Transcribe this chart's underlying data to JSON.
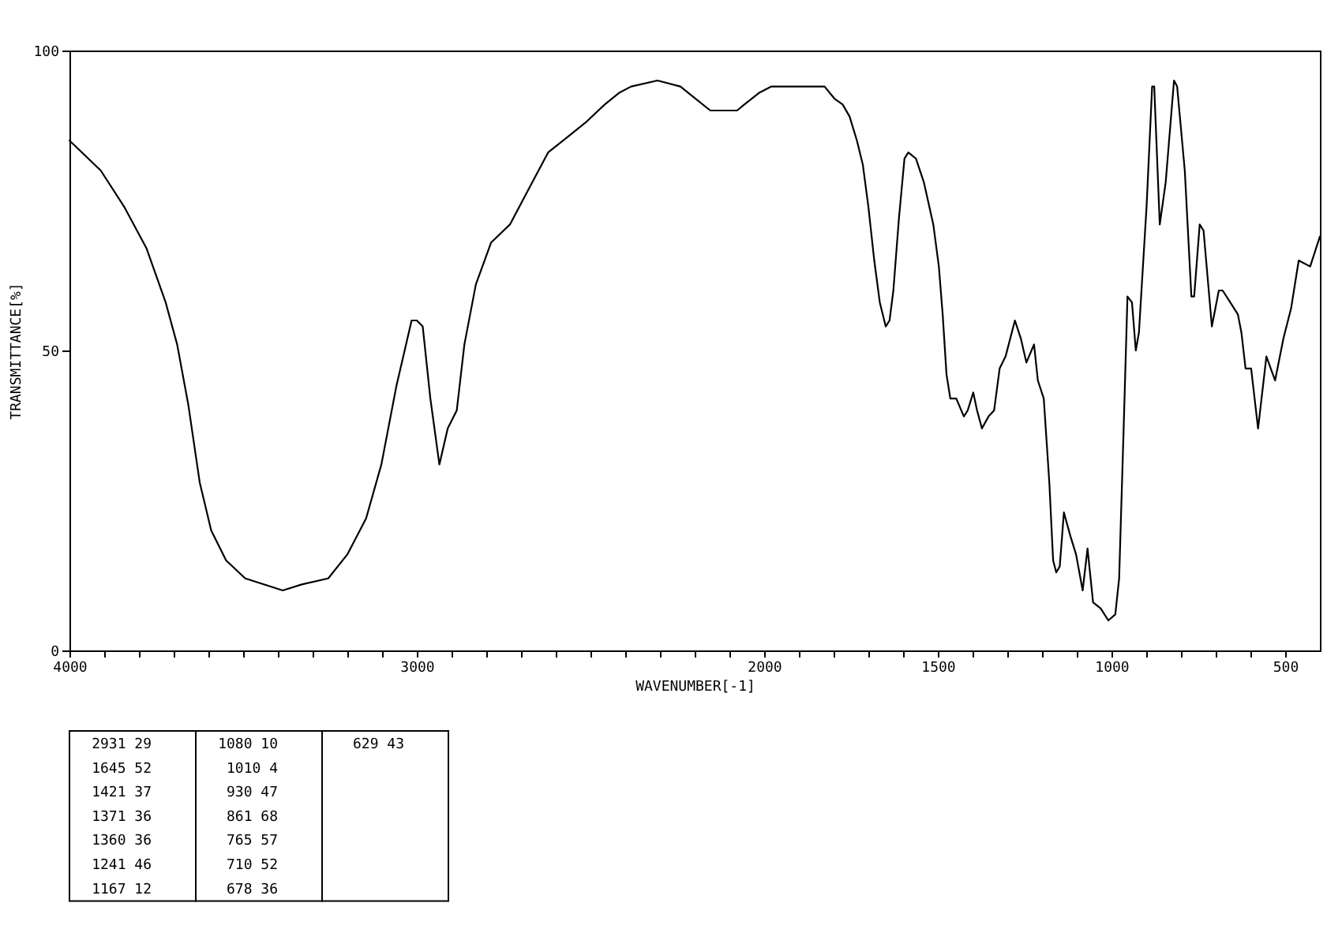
{
  "chart_data": [
    {
      "type": "line",
      "xlabel": "WAVENUMBER[-1]",
      "ylabel": "TRANSMITTANCE[%]",
      "xlim": [
        4000,
        400
      ],
      "ylim": [
        0,
        100
      ],
      "xticks": [
        4000,
        {
          "value": 3900,
          "label": null
        },
        {
          "value": 3800,
          "label": null
        },
        {
          "value": 3700,
          "label": null
        },
        {
          "value": 3600,
          "label": null
        },
        {
          "value": 3500,
          "label": null
        },
        {
          "value": 3400,
          "label": null
        },
        {
          "value": 3300,
          "label": null
        },
        {
          "value": 3200,
          "label": null
        },
        {
          "value": 3100,
          "label": null
        },
        3000,
        {
          "value": 2900,
          "label": null
        },
        {
          "value": 2800,
          "label": null
        },
        {
          "value": 2700,
          "label": null
        },
        {
          "value": 2600,
          "label": null
        },
        {
          "value": 2500,
          "label": null
        },
        {
          "value": 2400,
          "label": null
        },
        {
          "value": 2300,
          "label": null
        },
        {
          "value": 2200,
          "label": null
        },
        {
          "value": 2100,
          "label": null
        },
        2000,
        {
          "value": 1900,
          "label": null
        },
        {
          "value": 1800,
          "label": null
        },
        {
          "value": 1700,
          "label": null
        },
        {
          "value": 1600,
          "label": null
        },
        1500,
        {
          "value": 1400,
          "label": null
        },
        {
          "value": 1300,
          "label": null
        },
        {
          "value": 1200,
          "label": null
        },
        {
          "value": 1100,
          "label": null
        },
        1000,
        {
          "value": 900,
          "label": null
        },
        {
          "value": 800,
          "label": null
        },
        {
          "value": 700,
          "label": null
        },
        {
          "value": 600,
          "label": null
        },
        500
      ],
      "yticks": [
        0,
        50,
        100
      ],
      "grid": false,
      "line_style": "solid",
      "x": [
        4000,
        3910,
        3843,
        3778,
        3723,
        3690,
        3658,
        3625,
        3592,
        3549,
        3494,
        3386,
        3331,
        3255,
        3200,
        3146,
        3102,
        3059,
        3015,
        3000,
        2983,
        2961,
        2935,
        2911,
        2885,
        2863,
        2830,
        2786,
        2732,
        2677,
        2622,
        2557,
        2514,
        2459,
        2416,
        2383,
        2307,
        2241,
        2198,
        2155,
        2078,
        2057,
        2013,
        1979,
        1935,
        1848,
        1826,
        1798,
        1774,
        1754,
        1733,
        1716,
        1700,
        1683,
        1667,
        1650,
        1639,
        1628,
        1612,
        1596,
        1585,
        1563,
        1540,
        1513,
        1497,
        1486,
        1475,
        1464,
        1447,
        1425,
        1414,
        1398,
        1387,
        1373,
        1354,
        1338,
        1322,
        1305,
        1278,
        1261,
        1245,
        1223,
        1212,
        1195,
        1179,
        1168,
        1159,
        1149,
        1137,
        1118,
        1102,
        1083,
        1069,
        1053,
        1031,
        1009,
        989,
        978,
        965,
        954,
        941,
        930,
        921,
        899,
        883,
        877,
        861,
        844,
        820,
        811,
        789,
        770,
        762,
        746,
        735,
        711,
        691,
        680,
        658,
        636,
        626,
        614,
        598,
        578,
        554,
        529,
        505,
        483,
        461,
        428,
        400
      ],
      "series": [
        {
          "color": "#000000",
          "values": [
            85,
            80,
            74,
            67,
            58,
            51,
            41,
            28,
            20,
            15,
            12,
            10,
            11,
            12,
            16,
            22,
            31,
            44,
            55,
            55,
            54,
            42,
            31,
            37,
            40,
            51,
            61,
            68,
            71,
            77,
            83,
            86,
            88,
            91,
            93,
            94,
            95,
            94,
            92,
            90,
            90,
            91,
            93,
            94,
            94,
            94,
            94,
            92,
            91,
            89,
            85,
            81,
            74,
            65,
            58,
            54,
            55,
            60,
            72,
            82,
            83,
            82,
            78,
            71,
            64,
            56,
            46,
            42,
            42,
            39,
            40,
            43,
            40,
            37,
            39,
            40,
            47,
            49,
            55,
            52,
            48,
            51,
            45,
            42,
            28,
            15,
            13,
            14,
            23,
            19,
            16,
            10,
            17,
            8,
            7,
            5,
            6,
            12,
            37,
            59,
            58,
            50,
            53,
            74,
            94,
            94,
            71,
            78,
            95,
            94,
            80,
            59,
            59,
            71,
            70,
            54,
            60,
            60,
            58,
            56,
            53,
            47,
            47,
            37,
            49,
            45,
            52,
            57,
            65,
            64,
            69
          ]
        }
      ]
    },
    {
      "type": "other",
      "annotations": [
        "2931 29",
        "1645 52",
        "1421 37",
        "1371 36",
        "1360 36",
        "1241 46",
        "1167 12",
        "1080 10",
        "1010 4",
        "930 47",
        "861 68",
        "765 57",
        "710 52",
        "678 36",
        "629 43"
      ]
    }
  ]
}
